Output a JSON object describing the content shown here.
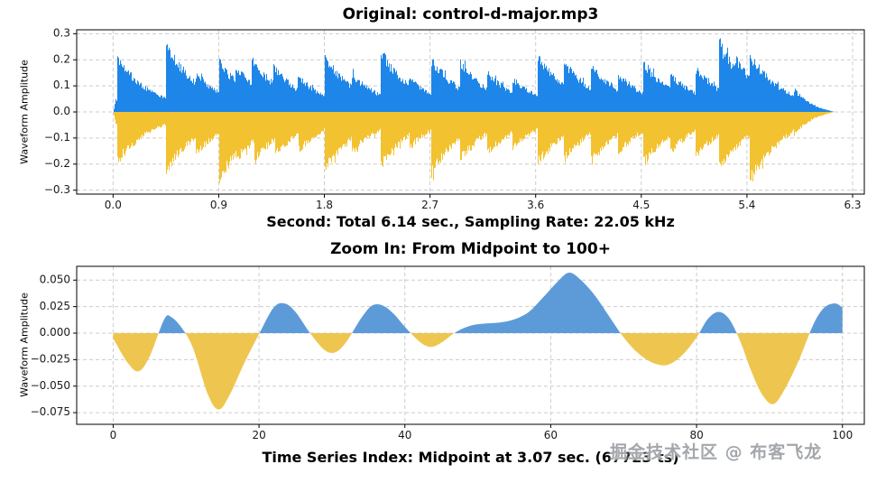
{
  "page": {
    "background": "#ffffff",
    "watermark": "掘金技术社区 @ 布客飞龙"
  },
  "chart_data": [
    {
      "type": "area",
      "title": "Original: control-d-major.mp3",
      "xlabel": "Second: Total 6.14 sec., Sampling Rate: 22.05 kHz",
      "ylabel": "Waveform Amplitude",
      "xlim": [
        -0.31,
        6.4
      ],
      "ylim": [
        -0.315,
        0.315
      ],
      "xticks": [
        0.0,
        0.9,
        1.8,
        2.7,
        3.6,
        4.5,
        5.4,
        6.3
      ],
      "xtick_labels": [
        "0.0",
        "0.9",
        "1.8",
        "2.7",
        "3.6",
        "4.5",
        "5.4",
        "6.3"
      ],
      "yticks": [
        -0.3,
        -0.2,
        -0.1,
        0.0,
        0.1,
        0.2,
        0.3
      ],
      "ytick_labels": [
        "−0.3",
        "−0.2",
        "−0.1",
        "0.0",
        "0.1",
        "0.2",
        "0.3"
      ],
      "grid": true,
      "legend": "none",
      "colors": {
        "positive": "#1E86E8",
        "negative": "#F3C231",
        "grid": "#cccccc",
        "spine": "#000000"
      },
      "audio": {
        "duration_sec": 6.14,
        "sampling_rate_khz": 22.05
      },
      "envelope": {
        "decay_tau": 0.3,
        "floor": 0.05,
        "signal_start": 0.0,
        "signal_end": 6.14,
        "taper_start": 5.78,
        "positive_attacks": [
          [
            0.03,
            0.23
          ],
          [
            0.45,
            0.285
          ],
          [
            0.7,
            0.16
          ],
          [
            0.9,
            0.21
          ],
          [
            1.04,
            0.19
          ],
          [
            1.18,
            0.22
          ],
          [
            1.36,
            0.19
          ],
          [
            1.57,
            0.15
          ],
          [
            1.8,
            0.23
          ],
          [
            2.03,
            0.16
          ],
          [
            2.28,
            0.25
          ],
          [
            2.52,
            0.14
          ],
          [
            2.71,
            0.22
          ],
          [
            2.95,
            0.21
          ],
          [
            3.18,
            0.17
          ],
          [
            3.4,
            0.14
          ],
          [
            3.61,
            0.24
          ],
          [
            3.84,
            0.21
          ],
          [
            4.07,
            0.2
          ],
          [
            4.3,
            0.16
          ],
          [
            4.51,
            0.21
          ],
          [
            4.74,
            0.16
          ],
          [
            4.96,
            0.18
          ],
          [
            5.16,
            0.285
          ],
          [
            5.3,
            0.22
          ],
          [
            5.42,
            0.24
          ],
          [
            5.6,
            0.13
          ],
          [
            5.8,
            0.1
          ]
        ],
        "negative_attacks": [
          [
            0.03,
            0.21
          ],
          [
            0.45,
            0.25
          ],
          [
            0.7,
            0.18
          ],
          [
            0.9,
            0.285
          ],
          [
            1.05,
            0.2
          ],
          [
            1.2,
            0.21
          ],
          [
            1.38,
            0.18
          ],
          [
            1.58,
            0.16
          ],
          [
            1.8,
            0.24
          ],
          [
            2.03,
            0.17
          ],
          [
            2.28,
            0.22
          ],
          [
            2.52,
            0.15
          ],
          [
            2.71,
            0.26
          ],
          [
            2.95,
            0.2
          ],
          [
            3.18,
            0.18
          ],
          [
            3.4,
            0.15
          ],
          [
            3.61,
            0.22
          ],
          [
            3.84,
            0.2
          ],
          [
            4.07,
            0.21
          ],
          [
            4.3,
            0.17
          ],
          [
            4.51,
            0.22
          ],
          [
            4.74,
            0.17
          ],
          [
            4.96,
            0.19
          ],
          [
            5.16,
            0.24
          ],
          [
            5.42,
            0.295
          ],
          [
            5.6,
            0.14
          ],
          [
            5.8,
            0.1
          ]
        ]
      }
    },
    {
      "type": "area",
      "title": "Zoom In: From Midpoint to 100+",
      "xlabel": "Time Series Index: Midpoint at 3.07 sec. (67723 ts)",
      "ylabel": "Waveform Amplitude",
      "xlim": [
        -5,
        103
      ],
      "ylim": [
        -0.086,
        0.063
      ],
      "xticks": [
        0,
        20,
        40,
        60,
        80,
        100
      ],
      "xtick_labels": [
        "0",
        "20",
        "40",
        "60",
        "80",
        "100"
      ],
      "yticks": [
        -0.075,
        -0.05,
        -0.025,
        0.0,
        0.025,
        0.05
      ],
      "ytick_labels": [
        "−0.075",
        "−0.050",
        "−0.025",
        "0.000",
        "0.025",
        "0.050"
      ],
      "grid": true,
      "legend": "none",
      "colors": {
        "positive": "#5D9BD8",
        "negative": "#EEC64F",
        "grid": "#cccccc",
        "spine": "#000000"
      },
      "midpoint_sec": 3.07,
      "midpoint_index": 67723,
      "points": [
        [
          0,
          -0.005
        ],
        [
          2,
          -0.028
        ],
        [
          3.5,
          -0.036
        ],
        [
          5,
          -0.022
        ],
        [
          7,
          0.013
        ],
        [
          8,
          0.015
        ],
        [
          9.5,
          0.004
        ],
        [
          11,
          -0.015
        ],
        [
          13,
          -0.058
        ],
        [
          14.5,
          -0.072
        ],
        [
          16,
          -0.058
        ],
        [
          18,
          -0.028
        ],
        [
          20,
          -0.001
        ],
        [
          22,
          0.024
        ],
        [
          23.5,
          0.028
        ],
        [
          25,
          0.02
        ],
        [
          27,
          0.0
        ],
        [
          29,
          -0.016
        ],
        [
          30.5,
          -0.018
        ],
        [
          32,
          -0.008
        ],
        [
          34,
          0.014
        ],
        [
          35.5,
          0.026
        ],
        [
          37,
          0.026
        ],
        [
          38.5,
          0.018
        ],
        [
          40,
          0.006
        ],
        [
          42,
          -0.008
        ],
        [
          43.5,
          -0.013
        ],
        [
          45,
          -0.009
        ],
        [
          47,
          0.001
        ],
        [
          49,
          0.007
        ],
        [
          51,
          0.009
        ],
        [
          53,
          0.01
        ],
        [
          55,
          0.013
        ],
        [
          57,
          0.02
        ],
        [
          59,
          0.034
        ],
        [
          61,
          0.049
        ],
        [
          62.5,
          0.057
        ],
        [
          64,
          0.051
        ],
        [
          66,
          0.036
        ],
        [
          68,
          0.016
        ],
        [
          70,
          -0.004
        ],
        [
          72,
          -0.019
        ],
        [
          74,
          -0.028
        ],
        [
          76,
          -0.03
        ],
        [
          78,
          -0.021
        ],
        [
          80,
          -0.004
        ],
        [
          81.5,
          0.013
        ],
        [
          83,
          0.02
        ],
        [
          84.5,
          0.013
        ],
        [
          86,
          -0.008
        ],
        [
          87.5,
          -0.036
        ],
        [
          89,
          -0.058
        ],
        [
          90.5,
          -0.067
        ],
        [
          92,
          -0.054
        ],
        [
          94,
          -0.026
        ],
        [
          96,
          0.008
        ],
        [
          97.5,
          0.024
        ],
        [
          99,
          0.028
        ],
        [
          100,
          0.024
        ]
      ]
    }
  ]
}
